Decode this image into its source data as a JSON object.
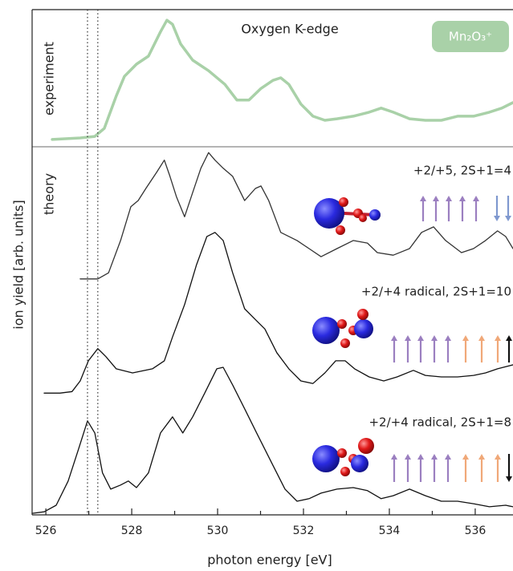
{
  "chart_data": {
    "type": "line",
    "title": "Oxygen K-edge",
    "badge": "Mn₂O₃⁺",
    "x_label": "photon energy [eV]",
    "y_label": "ion yield [arb. units]",
    "theory_label": "theory",
    "xlim": [
      525.68,
      536.88
    ],
    "ylim": [
      0,
      100
    ],
    "xticks": [
      526,
      528,
      530,
      532,
      534,
      536
    ],
    "xminor": [
      527,
      529,
      531,
      533,
      535
    ],
    "reference_lines": [
      526.97,
      527.21
    ],
    "series": [
      {
        "label": "experiment",
        "color": "#a9d1a8",
        "width": 3.5,
        "x": [
          526.15,
          526.8,
          527.14,
          527.36,
          527.64,
          527.83,
          528.11,
          528.39,
          528.67,
          528.82,
          528.95,
          529.14,
          529.42,
          529.79,
          530.17,
          530.45,
          530.73,
          531.01,
          531.29,
          531.47,
          531.66,
          531.94,
          532.22,
          532.5,
          532.78,
          533.16,
          533.53,
          533.81,
          534.09,
          534.47,
          534.84,
          535.21,
          535.59,
          535.96,
          536.33,
          536.62,
          536.88
        ],
        "values": [
          74.3,
          74.6,
          74.9,
          76.5,
          82.9,
          86.8,
          89.2,
          90.8,
          95.6,
          97.9,
          97.1,
          93.2,
          90.0,
          87.9,
          85.2,
          82.1,
          82.1,
          84.4,
          86.0,
          86.5,
          85.2,
          81.3,
          78.9,
          78.1,
          78.4,
          78.9,
          79.7,
          80.5,
          79.7,
          78.4,
          78.1,
          78.1,
          78.9,
          78.9,
          79.7,
          80.5,
          81.6
        ]
      },
      {
        "label": "+2/+5, 2S+1=4",
        "color": "#333333",
        "width": 1.3,
        "x": [
          526.8,
          527.21,
          527.46,
          527.74,
          527.98,
          528.15,
          528.33,
          528.58,
          528.76,
          528.89,
          529.04,
          529.23,
          529.42,
          529.61,
          529.79,
          529.94,
          530.13,
          530.35,
          530.63,
          530.88,
          531.01,
          531.19,
          531.47,
          531.85,
          532.13,
          532.41,
          532.78,
          533.16,
          533.49,
          533.72,
          534.09,
          534.47,
          534.75,
          535.03,
          535.31,
          535.68,
          535.96,
          536.24,
          536.52,
          536.71,
          536.88
        ],
        "values": [
          46.7,
          46.7,
          47.9,
          54.3,
          61.0,
          62.2,
          64.6,
          67.8,
          70.2,
          67.0,
          63.0,
          59.0,
          63.8,
          68.6,
          71.7,
          70.2,
          68.6,
          67.0,
          62.2,
          64.6,
          65.1,
          62.2,
          55.9,
          54.3,
          52.7,
          51.1,
          52.7,
          54.3,
          53.8,
          51.9,
          51.4,
          52.7,
          55.9,
          57.0,
          54.3,
          51.9,
          52.7,
          54.3,
          56.2,
          55.1,
          52.7
        ]
      },
      {
        "label": "+2/+4 radical, 2S+1=10",
        "color": "#111111",
        "width": 1.3,
        "x": [
          525.96,
          526.33,
          526.61,
          526.8,
          526.99,
          527.21,
          527.4,
          527.64,
          528.02,
          528.48,
          528.76,
          528.95,
          529.23,
          529.51,
          529.75,
          529.94,
          530.13,
          530.35,
          530.63,
          530.91,
          531.1,
          531.38,
          531.66,
          531.94,
          532.22,
          532.5,
          532.75,
          532.97,
          533.19,
          533.53,
          533.87,
          534.18,
          534.56,
          534.84,
          535.21,
          535.59,
          535.96,
          536.24,
          536.52,
          536.88
        ],
        "values": [
          24.1,
          24.1,
          24.4,
          26.5,
          30.5,
          32.9,
          31.3,
          28.9,
          28.1,
          28.9,
          30.5,
          35.2,
          41.6,
          49.5,
          55.1,
          55.9,
          54.3,
          47.9,
          40.8,
          38.4,
          36.8,
          32.1,
          28.9,
          26.5,
          26.0,
          28.1,
          30.5,
          30.5,
          28.9,
          27.3,
          26.5,
          27.3,
          28.6,
          27.6,
          27.3,
          27.3,
          27.6,
          28.1,
          28.9,
          29.7
        ]
      },
      {
        "label": "+2/+4 radical, 2S+1=8",
        "color": "#111111",
        "width": 1.3,
        "x": [
          525.68,
          525.96,
          526.24,
          526.52,
          526.76,
          526.97,
          527.14,
          527.32,
          527.51,
          527.74,
          527.92,
          528.11,
          528.39,
          528.67,
          528.95,
          529.19,
          529.42,
          529.7,
          529.98,
          530.13,
          530.35,
          530.63,
          530.91,
          531.29,
          531.57,
          531.85,
          532.13,
          532.41,
          532.78,
          533.16,
          533.49,
          533.81,
          534.09,
          534.47,
          534.84,
          535.21,
          535.59,
          535.96,
          536.33,
          536.71,
          536.88
        ],
        "values": [
          0.3,
          0.6,
          1.9,
          6.7,
          13.0,
          18.6,
          16.2,
          8.3,
          5.1,
          5.9,
          6.7,
          5.4,
          8.3,
          16.2,
          19.4,
          16.2,
          19.4,
          24.1,
          28.9,
          29.2,
          25.7,
          21.0,
          16.2,
          9.8,
          5.1,
          2.7,
          3.2,
          4.3,
          5.1,
          5.4,
          4.8,
          3.2,
          3.8,
          5.1,
          3.8,
          2.7,
          2.7,
          2.2,
          1.6,
          1.9,
          1.6
        ]
      }
    ]
  }
}
